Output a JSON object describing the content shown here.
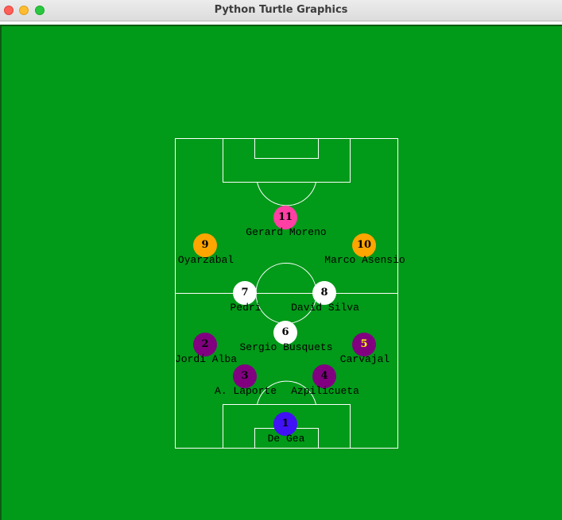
{
  "window": {
    "title": "Python Turtle Graphics"
  },
  "colors": {
    "field": "#019a19",
    "lines": "#ffffff"
  },
  "players": [
    {
      "number": "1",
      "name": "De Gea",
      "color": "#4111f5",
      "numColor": "#000000"
    },
    {
      "number": "2",
      "name": "Jordi Alba",
      "color": "#800080",
      "numColor": "#000000"
    },
    {
      "number": "3",
      "name": "A. Laporte",
      "color": "#800080",
      "numColor": "#000000"
    },
    {
      "number": "4",
      "name": "Azpilicueta",
      "color": "#800080",
      "numColor": "#000000"
    },
    {
      "number": "5",
      "name": "Carvajal",
      "color": "#800080",
      "numColor": "#ffff00"
    },
    {
      "number": "6",
      "name": "Sergio Busquets",
      "color": "#ffffff",
      "numColor": "#000000"
    },
    {
      "number": "7",
      "name": "Pedri",
      "color": "#ffffff",
      "numColor": "#000000"
    },
    {
      "number": "8",
      "name": "David Silva",
      "color": "#ffffff",
      "numColor": "#000000"
    },
    {
      "number": "9",
      "name": "Oyarzabal",
      "color": "#ffa500",
      "numColor": "#000000"
    },
    {
      "number": "10",
      "name": "Marco Asensio",
      "color": "#ffa500",
      "numColor": "#000000"
    },
    {
      "number": "11",
      "name": "Gerard Moreno",
      "color": "#ff3fa4",
      "numColor": "#000000"
    }
  ]
}
